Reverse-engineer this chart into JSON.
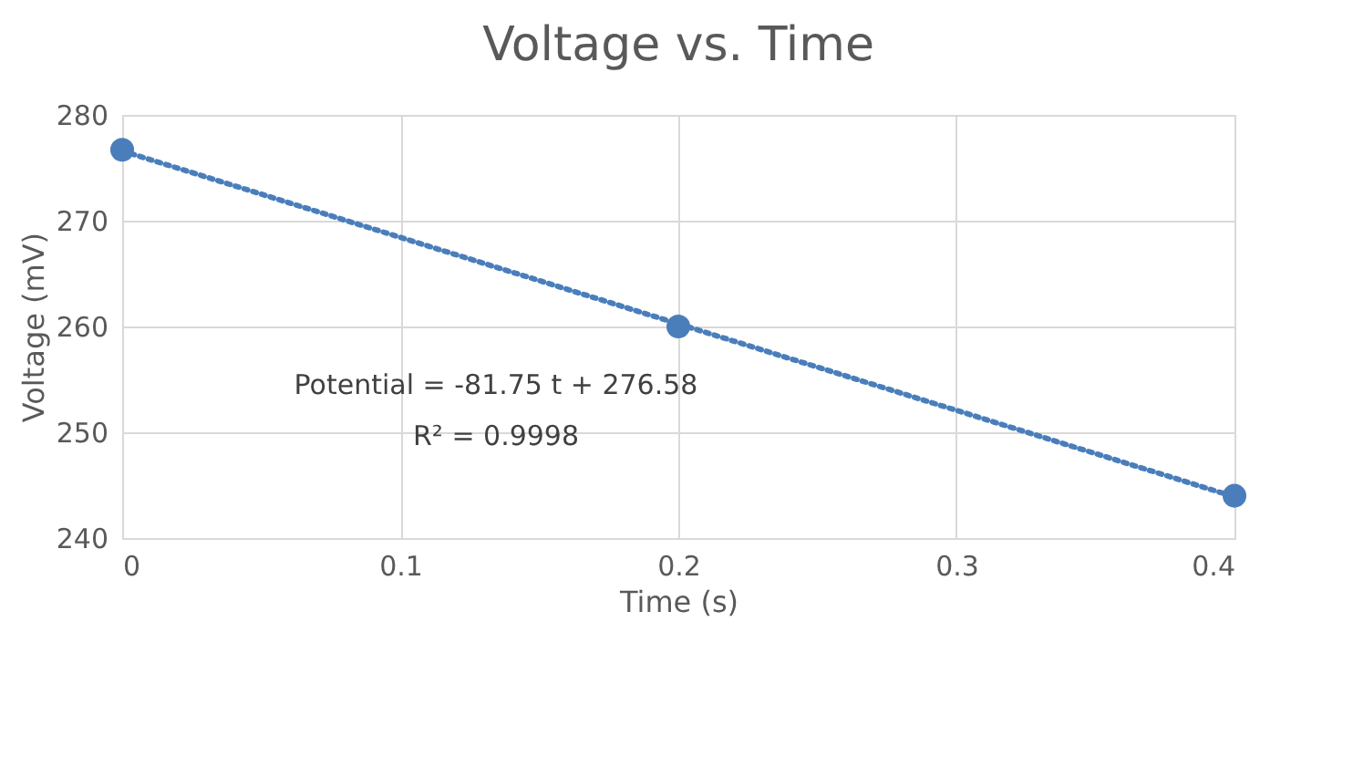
{
  "chart_data": {
    "type": "scatter",
    "title": "Voltage vs. Time",
    "xlabel": "Time (s)",
    "ylabel": "Voltage (mV)",
    "series": [
      {
        "type": "scatter",
        "color": "#4a7ebb",
        "x": [
          0,
          0.2,
          0.4
        ],
        "values": [
          276.7,
          260.0,
          244.0
        ],
        "marker": "circle"
      },
      {
        "type": "line",
        "color": "#4a7ebb",
        "x": [
          0,
          0.4
        ],
        "values": [
          276.6,
          243.9
        ],
        "line_style": "dotted",
        "marker": "none"
      }
    ],
    "annotations": [
      "Potential = -81.75 t + 276.58",
      "R² = 0.9998"
    ],
    "xlim": [
      0,
      0.4
    ],
    "xticks": [
      0,
      0.1,
      0.2,
      0.3,
      0.4
    ],
    "ylim": [
      240,
      280
    ],
    "yticks": [
      240,
      250,
      260,
      270,
      280
    ],
    "grid": true
  }
}
